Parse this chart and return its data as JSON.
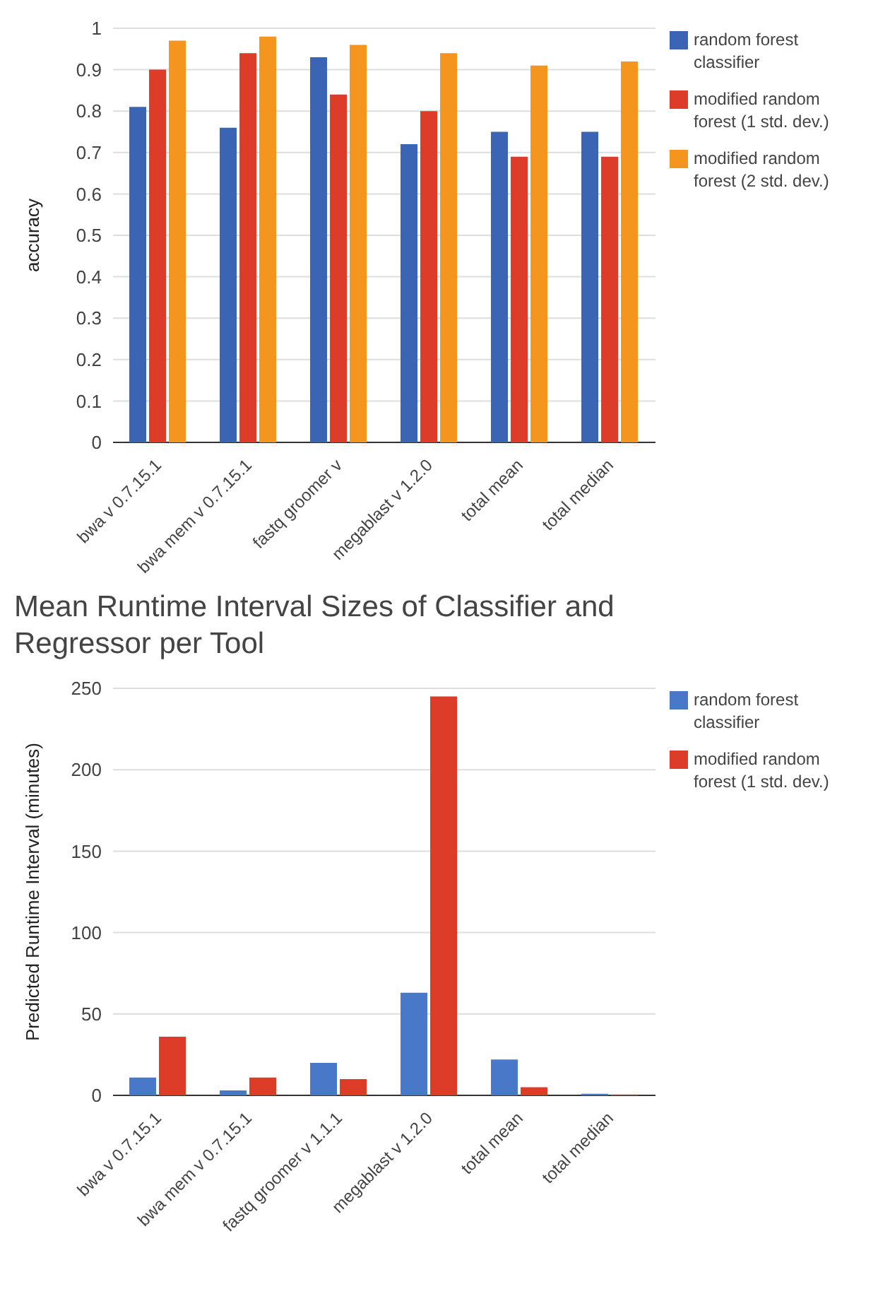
{
  "chart_data": [
    {
      "type": "bar",
      "ylabel": "accuracy",
      "categories": [
        "bwa v 0.7.15.1",
        "bwa mem v 0.7.15.1",
        "fastq groomer v",
        "megablast v 1.2.0",
        "total mean",
        "total median"
      ],
      "series": [
        {
          "name": "random forest classifier",
          "color": "#3c64b4",
          "values": [
            0.81,
            0.76,
            0.93,
            0.72,
            0.75,
            0.75
          ]
        },
        {
          "name": "modified random forest (1 std. dev.)",
          "color": "#dc3c28",
          "values": [
            0.9,
            0.94,
            0.84,
            0.8,
            0.69,
            0.69
          ]
        },
        {
          "name": "modified random forest (2 std. dev.)",
          "color": "#f4961e",
          "values": [
            0.97,
            0.98,
            0.96,
            0.94,
            0.91,
            0.92
          ]
        }
      ],
      "ylim": [
        0,
        1
      ],
      "yticks": [
        0,
        0.1,
        0.2,
        0.3,
        0.4,
        0.5,
        0.6,
        0.7,
        0.8,
        0.9,
        1
      ],
      "grid": "y",
      "legend": "top right"
    },
    {
      "type": "bar",
      "title": "Mean Runtime Interval Sizes of Classifier and Regressor per Tool",
      "ylabel": "Predicted Runtime Interval (minutes)",
      "categories": [
        "bwa v 0.7.15.1",
        "bwa mem v 0.7.15.1",
        "fastq groomer v 1.1.1",
        "megablast v 1.2.0",
        "total mean",
        "total median"
      ],
      "series": [
        {
          "name": "random forest classifier",
          "color": "#4a78c8",
          "values": [
            11,
            3,
            20,
            63,
            22,
            1
          ]
        },
        {
          "name": "modified random forest (1 std. dev.)",
          "color": "#dc3c28",
          "values": [
            36,
            11,
            10,
            245,
            5,
            0.5
          ]
        }
      ],
      "ylim": [
        0,
        250
      ],
      "yticks": [
        0,
        50,
        100,
        150,
        200,
        250
      ],
      "grid": "y",
      "legend": "top right"
    }
  ]
}
